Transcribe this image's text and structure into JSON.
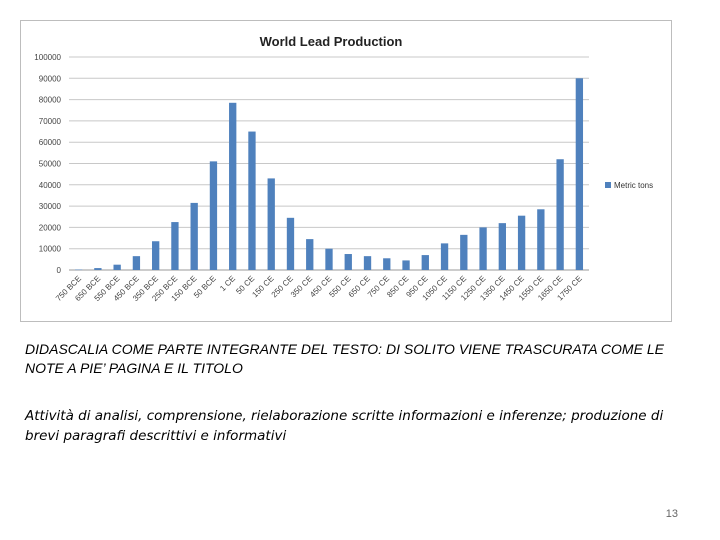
{
  "chart_data": {
    "type": "bar",
    "title": "World Lead Production",
    "categories": [
      "750 BCE",
      "650 BCE",
      "550 BCE",
      "450 BCE",
      "350 BCE",
      "250 BCE",
      "150 BCE",
      "50 BCE",
      "1 CE",
      "50 CE",
      "150 CE",
      "250 CE",
      "350 CE",
      "450 CE",
      "550 CE",
      "650 CE",
      "750 CE",
      "850 CE",
      "950 CE",
      "1050 CE",
      "1150 CE",
      "1250 CE",
      "1350 CE",
      "1450 CE",
      "1550 CE",
      "1650 CE",
      "1750 CE"
    ],
    "series": [
      {
        "name": "Metric tons",
        "values": [
          200,
          900,
          2500,
          6500,
          13500,
          22500,
          31500,
          51000,
          78500,
          65000,
          43000,
          24500,
          14500,
          10000,
          7500,
          6500,
          5500,
          4500,
          7000,
          12500,
          16500,
          20000,
          22000,
          25500,
          28500,
          52000,
          90000
        ]
      }
    ],
    "ylim": [
      0,
      100000
    ],
    "yticks": [
      "0",
      "10000",
      "20000",
      "30000",
      "40000",
      "50000",
      "60000",
      "70000",
      "80000",
      "90000",
      "100000"
    ],
    "grid": true,
    "legend_position": "right",
    "bar_color": "#4f81bd"
  },
  "captions": {
    "caption_1": "DIDASCALIA COME PARTE INTEGRANTE DEL TESTO: DI SOLITO VIENE TRASCURATA COME LE NOTE A PIE’ PAGINA E IL TITOLO",
    "caption_2": "Attività di analisi, comprensione, rielaborazione scritte informazioni  e inferenze; produzione di brevi paragrafi descrittivi e informativi"
  },
  "page_number": "13"
}
